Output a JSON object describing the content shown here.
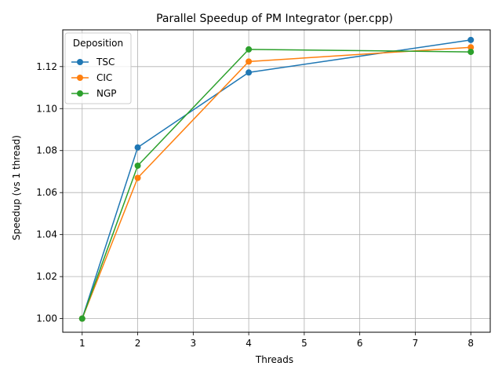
{
  "chart_data": {
    "type": "line",
    "title": "Parallel Speedup of PM Integrator (per.cpp)",
    "xlabel": "Threads",
    "ylabel": "Speedup (vs 1 thread)",
    "x": [
      1,
      2,
      4,
      8
    ],
    "xlim": [
      0.65,
      8.35
    ],
    "ylim": [
      0.9935,
      1.1375
    ],
    "xticks": [
      1,
      2,
      3,
      4,
      5,
      6,
      7,
      8
    ],
    "yticks": [
      1.0,
      1.02,
      1.04,
      1.06,
      1.08,
      1.1,
      1.12
    ],
    "ytick_labels": [
      "1.00",
      "1.02",
      "1.04",
      "1.06",
      "1.08",
      "1.10",
      "1.12"
    ],
    "grid": true,
    "legend": {
      "title": "Deposition",
      "placement": "top-left"
    },
    "series": [
      {
        "name": "TSC",
        "color": "#1f77b4",
        "values": [
          1.0,
          1.0815,
          1.1172,
          1.1327
        ]
      },
      {
        "name": "CIC",
        "color": "#ff7f0e",
        "values": [
          1.0,
          1.067,
          1.1224,
          1.1292
        ]
      },
      {
        "name": "NGP",
        "color": "#2ca02c",
        "values": [
          1.0,
          1.0728,
          1.1282,
          1.127
        ]
      }
    ]
  }
}
